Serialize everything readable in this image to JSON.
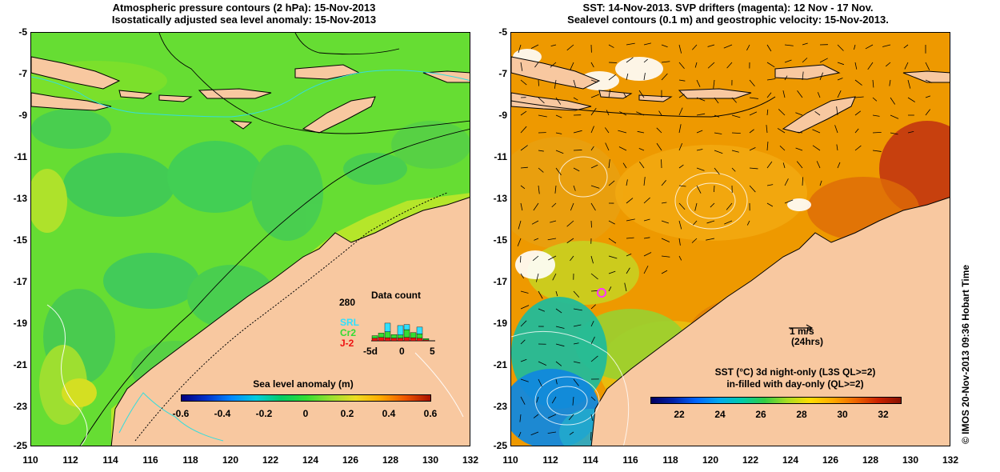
{
  "left_panel": {
    "title_line1": "Atmospheric pressure contours (2 hPa): 15-Nov-2013",
    "title_line2": "Isostatically adjusted sea level anomaly: 15-Nov-2013",
    "colorbar": {
      "title": "Sea level anomaly (m)",
      "ticks": [
        "-0.6",
        "-0.4",
        "-0.2",
        "0",
        "0.2",
        "0.4",
        "0.6"
      ]
    },
    "data_count": {
      "title": "Data count",
      "ymax_label": "280",
      "missions": [
        {
          "name": "SRL",
          "color": "#30e0ff"
        },
        {
          "name": "Cr2",
          "color": "#33dd33"
        },
        {
          "name": "J-2",
          "color": "#ee1111"
        }
      ],
      "x_ticks": [
        "-5d",
        "0",
        "5"
      ],
      "day_offsets": [
        -4,
        -3,
        -2,
        -1,
        0,
        1,
        2,
        3,
        4
      ],
      "J2": [
        15,
        20,
        18,
        16,
        16,
        20,
        18,
        15,
        5
      ],
      "Cr2": [
        15,
        25,
        35,
        20,
        18,
        45,
        30,
        25,
        8
      ],
      "SRL": [
        0,
        0,
        50,
        0,
        55,
        30,
        0,
        40,
        0
      ]
    }
  },
  "right_panel": {
    "title_line1": "SST: 14-Nov-2013. SVP drifters (magenta): 12 Nov - 17 Nov.",
    "title_line2": "Sealevel contours (0.1 m) and geostrophic velocity: 15-Nov-2013.",
    "velocity_scale": {
      "value": "1 m/s",
      "period": "(24hrs)"
    },
    "colorbar": {
      "title_line1": "SST (°C)  3d night-only (L3S QL>=2)",
      "title_line2": "in-filled with day-only (QL>=2)",
      "ticks": [
        "22",
        "24",
        "26",
        "28",
        "30",
        "32"
      ]
    }
  },
  "axes": {
    "lon_ticks": [
      "110",
      "112",
      "114",
      "116",
      "118",
      "120",
      "122",
      "124",
      "126",
      "128",
      "130",
      "132"
    ],
    "lat_ticks": [
      "-5",
      "-7",
      "-9",
      "-11",
      "-13",
      "-15",
      "-17",
      "-19",
      "-21",
      "-23",
      "-25"
    ]
  },
  "colors": {
    "land": "#f8c8a0",
    "sla_ocean": "#66dd33",
    "sst_ocean": "#ee9900"
  },
  "side_credit": "© IMOS 20-Nov-2013 09:36 Hobart Time"
}
